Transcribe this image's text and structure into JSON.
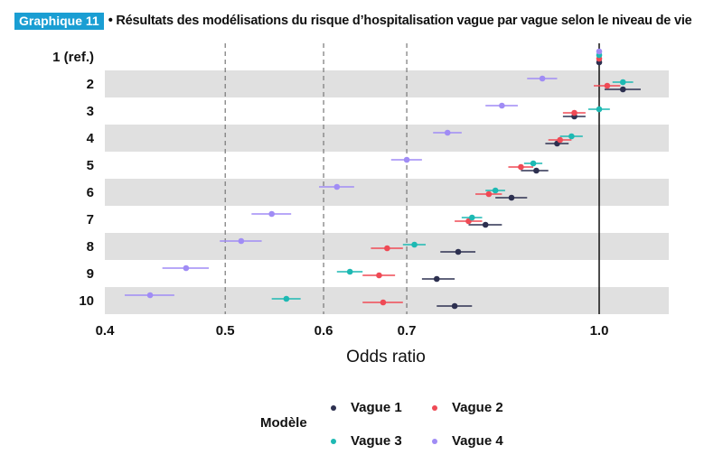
{
  "header": {
    "badge": "Graphique 11",
    "title": "• Résultats des modélisations du risque d’hospitalisation vague par vague selon le niveau de vie"
  },
  "colors": {
    "vague1": "#2d3050",
    "vague2": "#ef4a55",
    "vague3": "#1db9b3",
    "vague4": "#a08cf5",
    "band": "#e0e0e0",
    "badge": "#1a9ed3"
  },
  "chart_data": {
    "type": "scatter",
    "orientation": "horizontal forest plot with confidence intervals",
    "x_scale": "log",
    "xlabel": "Odds ratio",
    "xlim": [
      0.4,
      1.15
    ],
    "xticks": [
      0.4,
      0.5,
      0.6,
      0.7,
      1.0
    ],
    "xtick_labels": [
      "0.4",
      "0.5",
      "0.6",
      "0.7",
      "1.0"
    ],
    "dashed_lines": [
      0.5,
      0.6,
      0.7
    ],
    "reference_line": 1.0,
    "categories": [
      "1 (ref.)",
      "2",
      "3",
      "4",
      "5",
      "6",
      "7",
      "8",
      "9",
      "10"
    ],
    "legend_title": "Modèle",
    "legend_position": "bottom",
    "series": [
      {
        "name": "Vague 1",
        "color_key": "vague1",
        "or": [
          1.0,
          1.045,
          0.955,
          0.925,
          0.89,
          0.85,
          0.81,
          0.77,
          0.74,
          0.765
        ],
        "lo": [
          1.0,
          1.01,
          0.935,
          0.905,
          0.865,
          0.825,
          0.785,
          0.745,
          0.72,
          0.74
        ],
        "hi": [
          1.0,
          1.08,
          0.975,
          0.945,
          0.91,
          0.875,
          0.835,
          0.795,
          0.765,
          0.79
        ]
      },
      {
        "name": "Vague 2",
        "color_key": "vague2",
        "or": [
          1.0,
          1.015,
          0.955,
          0.93,
          0.865,
          0.815,
          0.785,
          0.675,
          0.665,
          0.67
        ],
        "lo": [
          1.0,
          0.99,
          0.935,
          0.91,
          0.845,
          0.795,
          0.765,
          0.655,
          0.645,
          0.645
        ],
        "hi": [
          1.0,
          1.04,
          0.975,
          0.95,
          0.885,
          0.835,
          0.805,
          0.695,
          0.685,
          0.695
        ]
      },
      {
        "name": "Vague 3",
        "color_key": "vague3",
        "or": [
          1.0,
          1.045,
          1.0,
          0.95,
          0.885,
          0.825,
          0.79,
          0.71,
          0.63,
          0.56
        ],
        "lo": [
          1.0,
          1.025,
          0.98,
          0.93,
          0.87,
          0.81,
          0.775,
          0.695,
          0.615,
          0.545
        ],
        "hi": [
          1.0,
          1.065,
          1.02,
          0.97,
          0.9,
          0.84,
          0.805,
          0.725,
          0.645,
          0.575
        ]
      },
      {
        "name": "Vague 4",
        "color_key": "vague4",
        "or": [
          1.0,
          0.9,
          0.835,
          0.755,
          0.7,
          0.615,
          0.545,
          0.515,
          0.465,
          0.435
        ],
        "lo": [
          1.0,
          0.875,
          0.81,
          0.735,
          0.68,
          0.595,
          0.525,
          0.495,
          0.445,
          0.415
        ],
        "hi": [
          1.0,
          0.925,
          0.86,
          0.775,
          0.72,
          0.635,
          0.565,
          0.535,
          0.485,
          0.455
        ]
      }
    ]
  }
}
